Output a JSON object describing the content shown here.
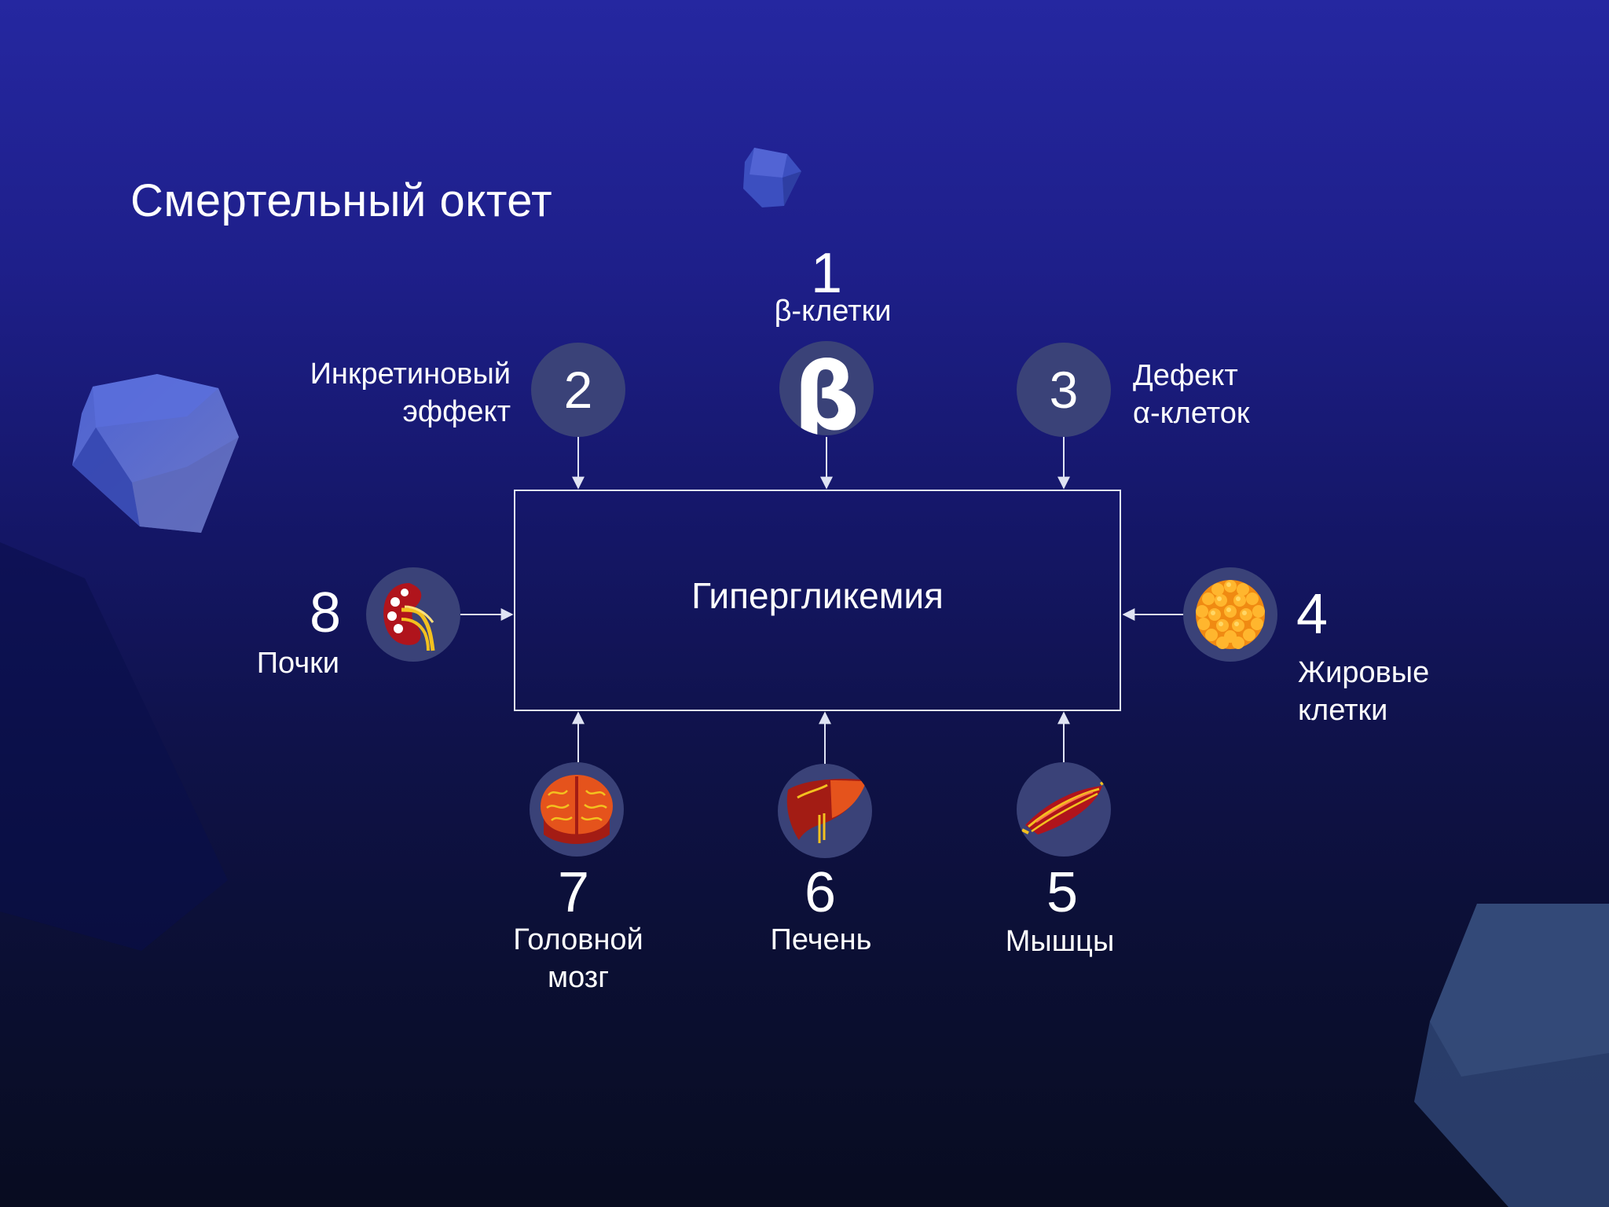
{
  "slide": {
    "title": "Смертельный октет",
    "center_box": {
      "label": "Гипергликемия"
    },
    "factors": [
      {
        "id": "beta",
        "number": "1",
        "label_lines": [
          "β-клетки"
        ],
        "badge": "β"
      },
      {
        "id": "incretin",
        "number": "2",
        "label_lines": [
          "Инкретиновый",
          "эффект"
        ]
      },
      {
        "id": "alpha",
        "number": "3",
        "label_lines": [
          "Дефект",
          "α-клеток"
        ]
      },
      {
        "id": "fat",
        "number": "4",
        "label_lines": [
          "Жировые",
          "клетки"
        ],
        "icon": "fat-cells-icon"
      },
      {
        "id": "muscle",
        "number": "5",
        "label_lines": [
          "Мышцы"
        ],
        "icon": "muscle-icon"
      },
      {
        "id": "liver",
        "number": "6",
        "label_lines": [
          "Печень"
        ],
        "icon": "liver-icon"
      },
      {
        "id": "brain",
        "number": "7",
        "label_lines": [
          "Головной",
          "мозг"
        ],
        "icon": "brain-icon"
      },
      {
        "id": "kidney",
        "number": "8",
        "label_lines": [
          "Почки"
        ],
        "icon": "kidney-icon"
      }
    ]
  },
  "colors": {
    "background_top": "#2527a0",
    "background_bottom": "#080c20",
    "circle_fill": "#3a4278",
    "line": "#dfe3f3",
    "text": "#ffffff"
  }
}
